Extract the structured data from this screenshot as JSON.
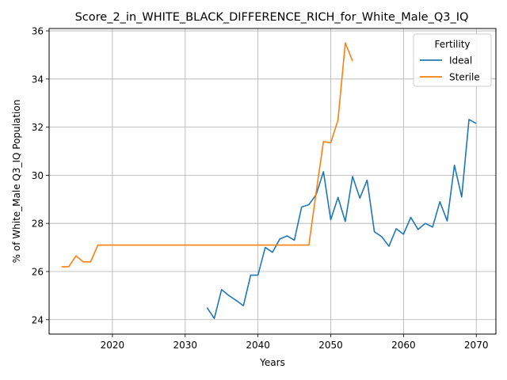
{
  "chart_data": {
    "type": "line",
    "title": "Score_2_in_WHITE_BLACK_DIFFERENCE_RICH_for_White_Male_Q3_IQ",
    "xlabel": "Years",
    "ylabel": "% of White_Male Q3_IQ Population",
    "xlim": [
      2011.3,
      2072.7
    ],
    "ylim": [
      23.4,
      36.1
    ],
    "xticks": [
      2020,
      2030,
      2040,
      2050,
      2060,
      2070
    ],
    "yticks": [
      24,
      26,
      28,
      30,
      32,
      34,
      36
    ],
    "grid": true,
    "legend": {
      "title": "Fertility",
      "placement": "top-right"
    },
    "series": [
      {
        "name": "Ideal",
        "color": "#1f77b4",
        "x": [
          2033,
          2034,
          2035,
          2036,
          2037,
          2038,
          2039,
          2040,
          2041,
          2042,
          2043,
          2044,
          2045,
          2046,
          2047,
          2048,
          2049,
          2050,
          2051,
          2052,
          2053,
          2054,
          2055,
          2056,
          2057,
          2058,
          2059,
          2060,
          2061,
          2062,
          2063,
          2064,
          2065,
          2066,
          2067,
          2068,
          2069,
          2070
        ],
        "y": [
          24.5,
          24.05,
          25.25,
          25.0,
          24.8,
          24.58,
          25.85,
          25.85,
          27.0,
          26.8,
          27.35,
          27.48,
          27.3,
          28.68,
          28.78,
          29.2,
          30.15,
          28.15,
          29.08,
          28.08,
          29.95,
          29.05,
          29.8,
          27.65,
          27.45,
          27.05,
          27.78,
          27.55,
          28.25,
          27.75,
          28.0,
          27.85,
          28.9,
          28.1,
          30.42,
          29.1,
          32.32,
          32.15
        ]
      },
      {
        "name": "Sterile",
        "color": "#ff7f0e",
        "x": [
          2013,
          2014,
          2015,
          2016,
          2017,
          2018,
          2019,
          2020,
          2025,
          2030,
          2035,
          2040,
          2045,
          2046,
          2047,
          2048,
          2049,
          2050,
          2051,
          2052,
          2053
        ],
        "y": [
          26.2,
          26.2,
          26.65,
          26.4,
          26.4,
          27.1,
          27.1,
          27.1,
          27.1,
          27.1,
          27.1,
          27.1,
          27.1,
          27.1,
          27.1,
          29.3,
          31.4,
          31.35,
          32.3,
          35.5,
          34.75
        ]
      }
    ]
  }
}
